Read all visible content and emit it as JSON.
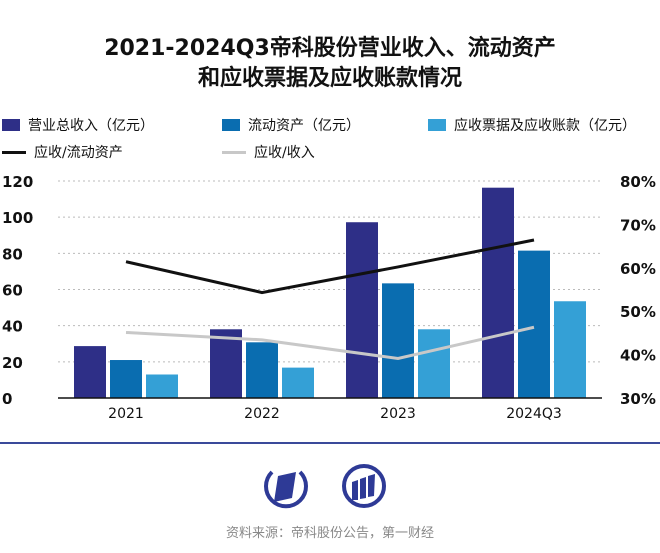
{
  "title_lines": [
    "2021-2024Q3帝科股份营业收入、流动资产",
    "和应收票据及应收账款情况"
  ],
  "source": "资料来源：帝科股份公告，第一财经",
  "colors": {
    "revenue": "#2e2f87",
    "current_assets": "#0a6db0",
    "receivables": "#34a0d6",
    "ratio_receivable_assets": "#111111",
    "ratio_receivable_revenue": "#c8c8c8",
    "divider": "#3a4a9a",
    "logo": "#2e3a96"
  },
  "icons": [
    "logo-parallelogram-icon",
    "logo-bars-icon"
  ],
  "chart_data": {
    "type": "bar",
    "categories": [
      "2021",
      "2022",
      "2023",
      "2024Q3"
    ],
    "series": [
      {
        "name": "营业总收入（亿元）",
        "kind": "bar",
        "axis": "left",
        "values": [
          28.7,
          38,
          97.2,
          116.3
        ]
      },
      {
        "name": "流动资产（亿元）",
        "kind": "bar",
        "axis": "left",
        "values": [
          21,
          30.8,
          63.4,
          81.5
        ]
      },
      {
        "name": "应收票据及应收账款（亿元）",
        "kind": "bar",
        "axis": "left",
        "values": [
          13,
          16.8,
          38,
          53.5
        ]
      },
      {
        "name": "应收/流动资产",
        "kind": "line",
        "axis": "right",
        "values": [
          61.4,
          54.3,
          60.2,
          66.4
        ]
      },
      {
        "name": "应收/收入",
        "kind": "line",
        "axis": "right",
        "values": [
          45.1,
          43.4,
          39.1,
          46.3
        ]
      }
    ],
    "left_axis": {
      "ylim": [
        0,
        120
      ],
      "ticks": [
        "0",
        "20",
        "40",
        "60",
        "80",
        "100",
        "120"
      ]
    },
    "right_axis": {
      "ylim": [
        30,
        80
      ],
      "unit": "%",
      "ticks": [
        "30%",
        "40%",
        "50%",
        "60%",
        "70%",
        "80%"
      ]
    },
    "grid": "horizontal dotted",
    "legend": "top"
  }
}
